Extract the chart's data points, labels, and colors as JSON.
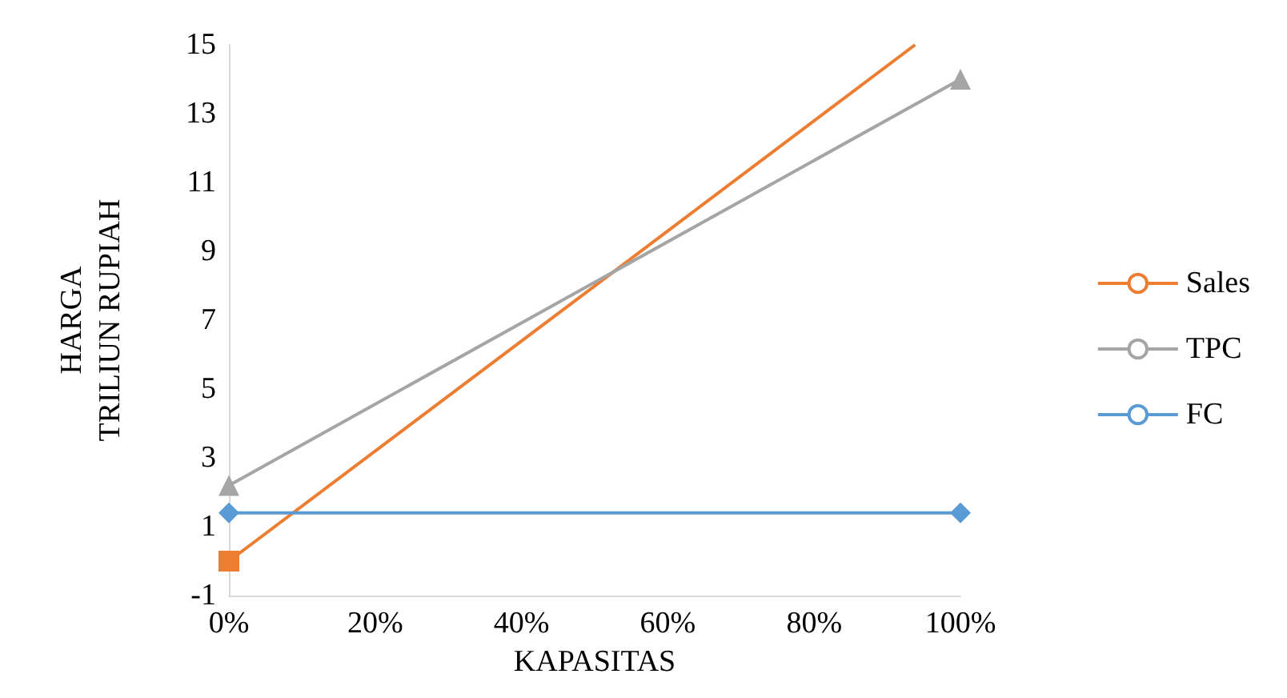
{
  "chart_data": {
    "type": "line",
    "xlabel": "KAPASITAS",
    "ylabel": "HARGA\nTRILIUN RUPIAH",
    "xlim": [
      0,
      100
    ],
    "xticks": [
      {
        "value": 0,
        "label": "0%"
      },
      {
        "value": 20,
        "label": "20%"
      },
      {
        "value": 40,
        "label": "40%"
      },
      {
        "value": 60,
        "label": "60%"
      },
      {
        "value": 80,
        "label": "80%"
      },
      {
        "value": 100,
        "label": "100%"
      }
    ],
    "ylim": [
      -1,
      15
    ],
    "yticks": [
      -1,
      1,
      3,
      5,
      7,
      9,
      11,
      13,
      15
    ],
    "grid": false,
    "legend": "right",
    "x": [
      0,
      100
    ],
    "series": [
      {
        "name": "Sales",
        "color": "#ed7d31",
        "marker": "square",
        "x": [
          0,
          93.8
        ],
        "values": [
          0,
          15
        ]
      },
      {
        "name": "TPC",
        "color": "#a5a5a5",
        "marker": "triangle",
        "values": [
          2.2,
          14
        ]
      },
      {
        "name": "FC",
        "color": "#5b9bd5",
        "marker": "diamond",
        "values": [
          1.4,
          1.4
        ]
      }
    ]
  }
}
